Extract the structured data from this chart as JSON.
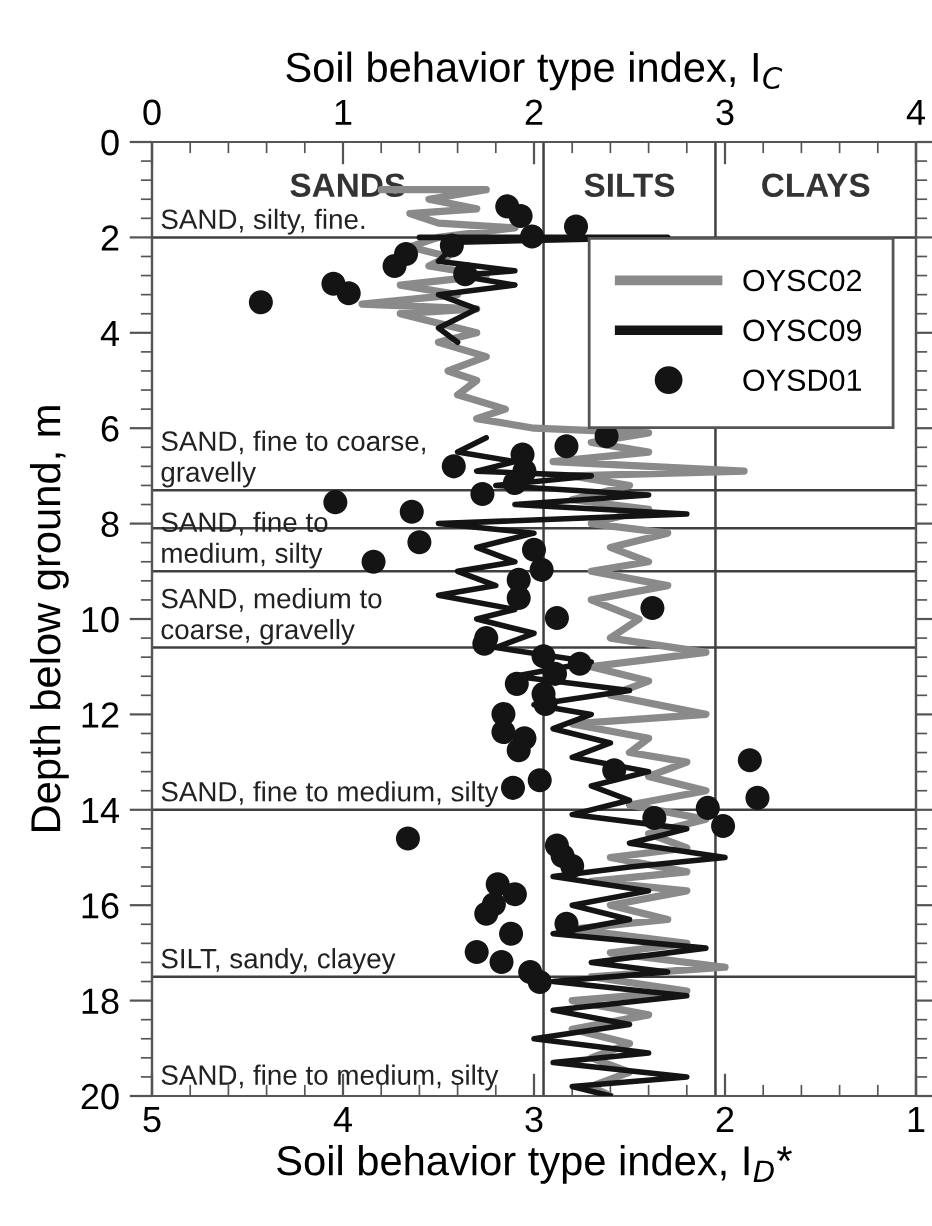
{
  "chart_data": {
    "type": "line",
    "xlabel": "Soil behavior type index, I$_{D}$*",
    "x2label": "Soil behavior type index, I$_{C}$",
    "ylabel": "Depth below ground, m",
    "xlim": [
      5,
      1
    ],
    "xticks": [
      5,
      4,
      3,
      2,
      1
    ],
    "x2lim": [
      0,
      4
    ],
    "x2ticks": [
      0,
      1,
      2,
      3,
      4
    ],
    "ylim": [
      20,
      0
    ],
    "yticks": [
      0,
      2,
      4,
      6,
      8,
      10,
      12,
      14,
      16,
      18,
      20
    ],
    "grid": false,
    "legend": "top right",
    "series": [
      {
        "name": "OYSC02",
        "axis": "x2",
        "color": "#8a8a8a",
        "values": [
          1.0,
          1.0,
          1.2,
          1.4,
          1.5,
          1.7,
          1.8,
          2.0,
          2.2,
          2.4,
          2.6,
          2.8,
          3.0,
          3.2,
          3.4,
          3.5,
          3.6,
          3.8,
          4.0,
          4.2,
          4.5,
          4.8,
          5.0,
          5.3,
          5.6,
          5.8,
          6.0,
          6.1,
          6.3,
          6.5,
          6.7,
          6.9,
          7.0,
          7.2,
          7.5,
          7.7,
          8.0,
          8.2,
          8.5,
          8.8,
          9.0,
          9.3,
          9.6,
          10.0,
          10.4,
          10.7,
          11.0,
          11.3,
          11.6,
          12.0,
          12.2,
          12.5,
          12.8,
          13.0,
          13.3,
          13.6,
          13.9,
          14.2,
          14.5,
          14.8,
          15.0,
          15.3,
          15.5,
          15.7,
          16.0,
          16.3,
          16.5,
          16.8,
          17.0,
          17.3,
          17.5,
          17.8,
          18.0,
          18.3,
          18.6,
          18.9,
          19.2,
          19.5,
          19.8,
          20.0
        ],
        "x": [
          1.2,
          1.75,
          1.45,
          1.7,
          1.35,
          1.5,
          1.9,
          1.5,
          1.35,
          1.55,
          1.45,
          1.75,
          1.3,
          1.6,
          1.1,
          1.7,
          1.3,
          1.5,
          1.7,
          1.5,
          1.75,
          1.55,
          1.7,
          1.6,
          1.85,
          1.7,
          2.0,
          2.6,
          2.3,
          2.6,
          2.1,
          3.1,
          2.2,
          2.5,
          2.2,
          2.6,
          2.3,
          2.7,
          2.4,
          2.6,
          2.3,
          2.7,
          2.3,
          2.55,
          2.4,
          2.9,
          2.3,
          2.6,
          2.4,
          2.9,
          2.2,
          2.6,
          2.5,
          2.8,
          2.6,
          2.9,
          2.5,
          2.9,
          2.6,
          2.8,
          2.4,
          2.8,
          2.3,
          2.8,
          2.4,
          2.7,
          2.2,
          2.8,
          2.4,
          3.0,
          2.3,
          2.8,
          2.2,
          2.6,
          2.2,
          2.5,
          2.3,
          2.5,
          2.3,
          2.4
        ]
      },
      {
        "name": "OYSC09",
        "axis": "x2",
        "color": "#141414",
        "values": [
          2.0,
          2.0,
          2.1,
          2.5,
          2.7,
          2.8,
          3.0,
          3.2,
          3.5,
          3.9,
          4.2,
          null,
          6.2,
          6.5,
          6.7,
          6.9,
          7.0,
          7.2,
          7.4,
          7.6,
          7.8,
          8.0,
          8.2,
          8.5,
          8.8,
          9.0,
          9.3,
          9.5,
          9.8,
          10.0,
          10.3,
          10.6,
          10.9,
          11.2,
          11.5,
          11.8,
          12.0,
          12.3,
          12.6,
          12.9,
          13.2,
          13.5,
          13.8,
          14.1,
          14.4,
          14.7,
          15.0,
          15.2,
          15.4,
          15.7,
          16.0,
          16.3,
          16.6,
          16.9,
          17.2,
          17.4,
          17.6,
          17.9,
          18.2,
          18.5,
          18.8,
          19.1,
          19.3,
          19.6,
          19.8,
          20.0
        ],
        "x": [
          1.4,
          2.7,
          1.6,
          1.5,
          1.9,
          1.6,
          1.9,
          1.5,
          1.7,
          1.5,
          1.6,
          null,
          1.75,
          1.6,
          1.9,
          1.7,
          2.3,
          1.8,
          2.6,
          1.9,
          2.8,
          1.5,
          2.0,
          1.7,
          1.9,
          1.6,
          1.8,
          1.5,
          1.9,
          1.7,
          2.0,
          1.8,
          2.3,
          1.9,
          2.5,
          2.0,
          2.3,
          2.1,
          2.4,
          2.2,
          2.6,
          2.3,
          2.5,
          2.2,
          2.8,
          2.5,
          3.0,
          2.5,
          2.1,
          2.6,
          2.2,
          2.5,
          2.1,
          2.9,
          2.3,
          2.7,
          2.1,
          2.8,
          2.1,
          2.5,
          2.0,
          2.6,
          2.1,
          2.8,
          2.2,
          2.4
        ]
      },
      {
        "name": "OYSD01",
        "type": "scatter",
        "axis": "x2",
        "color": "#141414",
        "marker": "circle",
        "values": [
          1.35,
          1.55,
          1.77,
          1.98,
          2.17,
          2.35,
          2.6,
          2.77,
          2.97,
          3.17,
          3.36,
          6.17,
          6.38,
          6.55,
          6.8,
          6.9,
          7.15,
          7.38,
          7.55,
          7.75,
          8.39,
          8.8,
          8.55,
          8.97,
          9.18,
          9.56,
          9.98,
          9.77,
          10.4,
          10.52,
          10.78,
          10.94,
          11.15,
          11.36,
          11.57,
          11.78,
          11.99,
          12.37,
          12.5,
          12.75,
          13.17,
          12.96,
          13.75,
          13.38,
          13.54,
          13.96,
          14.17,
          14.34,
          14.6,
          14.75,
          14.97,
          15.18,
          15.56,
          15.77,
          15.98,
          16.18,
          16.39,
          16.6,
          16.98,
          17.19,
          17.4,
          17.61
        ],
        "x": [
          1.86,
          1.93,
          2.22,
          1.99,
          1.57,
          1.33,
          1.27,
          1.64,
          0.95,
          1.03,
          0.57,
          2.38,
          2.17,
          1.94,
          1.58,
          1.95,
          1.9,
          1.73,
          0.96,
          1.36,
          1.4,
          1.16,
          2.0,
          2.04,
          1.92,
          1.92,
          2.12,
          2.62,
          1.75,
          1.74,
          2.05,
          2.24,
          2.11,
          1.91,
          2.05,
          2.06,
          1.84,
          1.84,
          1.95,
          1.92,
          2.42,
          3.13,
          3.17,
          2.03,
          1.89,
          2.91,
          2.63,
          2.99,
          1.34,
          2.12,
          2.15,
          2.2,
          1.81,
          1.9,
          1.79,
          1.75,
          2.17,
          1.88,
          1.7,
          1.83,
          1.98,
          2.03
        ]
      }
    ],
    "ref_lines": [
      {
        "axis": "x2",
        "value": 2.05,
        "color": "#404040"
      },
      {
        "axis": "x2",
        "value": 2.95,
        "color": "#404040"
      },
      {
        "axis": "y",
        "value": 2.0,
        "label": "SAND, silty, fine.",
        "color": "#404040"
      },
      {
        "axis": "y",
        "value": 7.3,
        "label": "SAND, fine to coarse,\ngravelly",
        "color": "#404040"
      },
      {
        "axis": "y",
        "value": 8.1,
        "color": "#404040"
      },
      {
        "axis": "y",
        "value": 9.0,
        "label": "SAND, fine to\nmedium, silty",
        "color": "#404040"
      },
      {
        "axis": "y",
        "value": 10.6,
        "label": "SAND, medium to\ncoarse, gravelly",
        "color": "#404040"
      },
      {
        "axis": "y",
        "value": 14.0,
        "label": "SAND, fine to medium, silty",
        "color": "#404040"
      },
      {
        "axis": "y",
        "value": 17.5,
        "label": "SILT, sandy, clayey",
        "color": "#404040"
      }
    ],
    "annotations": [
      "SAND, fine to medium, silty",
      "SANDS",
      "SILTS",
      "CLAYS"
    ]
  }
}
